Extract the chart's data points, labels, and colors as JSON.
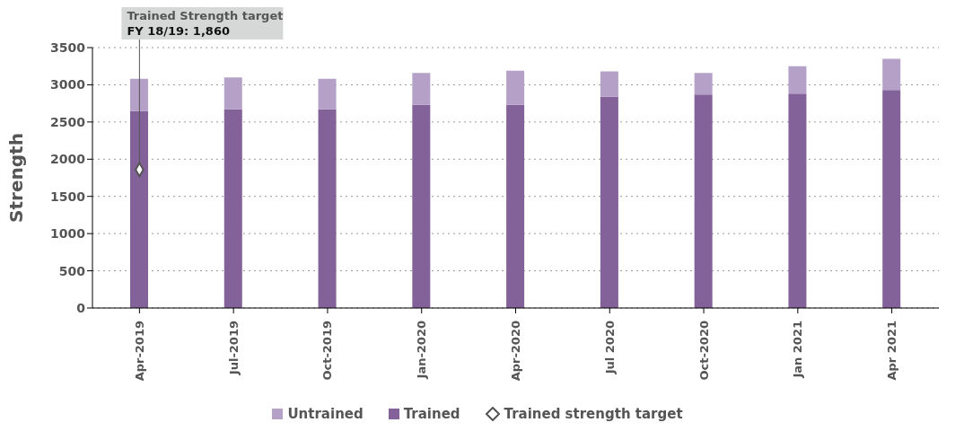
{
  "chart_data": {
    "type": "bar",
    "stacked": true,
    "ylabel": "Strength",
    "categories": [
      "Apr-2019",
      "Jul-2019",
      "Oct-2019",
      "Jan-2020",
      "Apr-2020",
      "Jul 2020",
      "Oct-2020",
      "Jan 2021",
      "Apr 2021"
    ],
    "series": [
      {
        "name": "Trained",
        "color": "#83629a",
        "values": [
          2650,
          2670,
          2670,
          2730,
          2730,
          2840,
          2870,
          2880,
          2930
        ]
      },
      {
        "name": "Untrained",
        "color": "#b5a1c7",
        "values": [
          430,
          430,
          410,
          430,
          460,
          340,
          290,
          370,
          420
        ]
      },
      {
        "name": "Trained strength target",
        "type": "scatter",
        "marker": "diamond",
        "color": "#ffffff",
        "values": [
          1860,
          null,
          null,
          null,
          null,
          null,
          null,
          null,
          null
        ]
      }
    ],
    "ylim": [
      0,
      3500
    ],
    "yticks": [
      0,
      500,
      1000,
      1500,
      2000,
      2500,
      3000,
      3500
    ],
    "grid": "y",
    "legend": "bottom",
    "annotations": [
      {
        "text": "Trained Strength target\nFY 18/19: 1,860",
        "x": "Apr-2019",
        "y": 1860
      }
    ]
  }
}
